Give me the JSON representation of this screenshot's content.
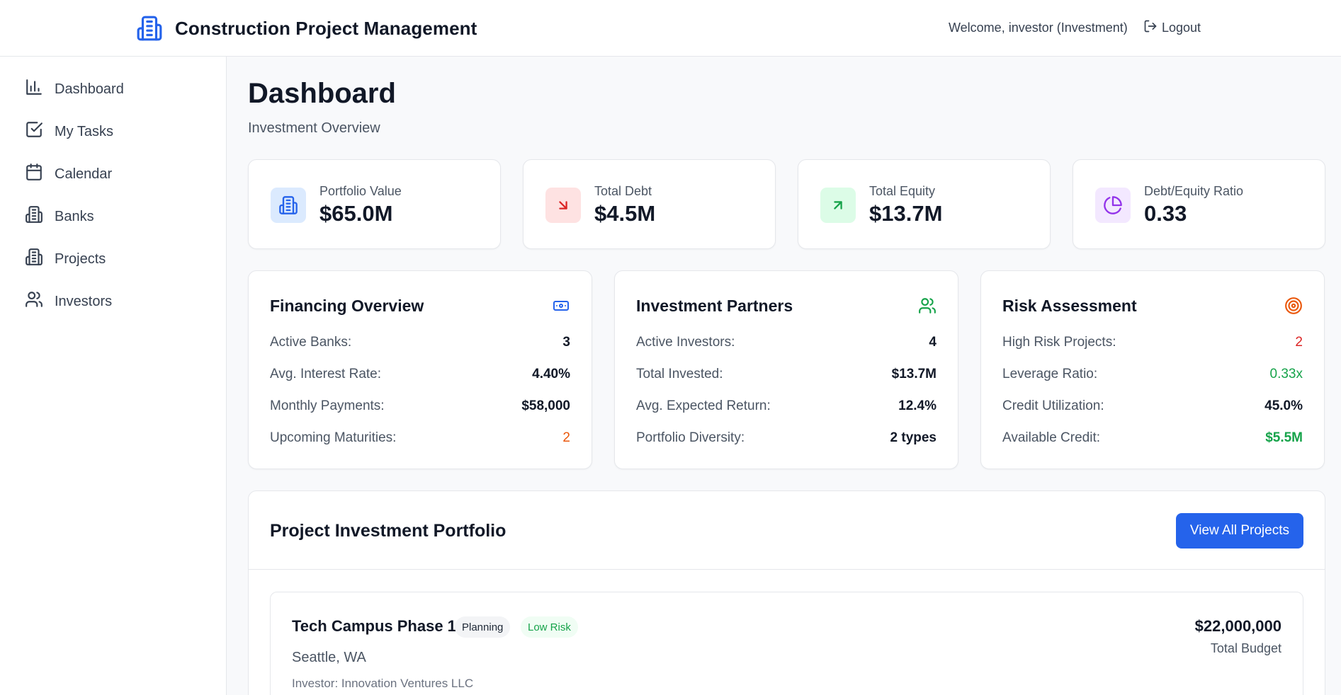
{
  "header": {
    "app_title": "Construction Project Management",
    "welcome_text": "Welcome, investor (Investment)",
    "logout_label": "Logout"
  },
  "sidebar": {
    "items": [
      {
        "label": "Dashboard",
        "icon": "bar-chart-icon"
      },
      {
        "label": "My Tasks",
        "icon": "check-square-icon"
      },
      {
        "label": "Calendar",
        "icon": "calendar-icon"
      },
      {
        "label": "Banks",
        "icon": "building-icon"
      },
      {
        "label": "Projects",
        "icon": "building-icon"
      },
      {
        "label": "Investors",
        "icon": "users-icon"
      }
    ]
  },
  "page": {
    "title": "Dashboard",
    "subtitle": "Investment Overview"
  },
  "stats": [
    {
      "label": "Portfolio Value",
      "value": "$65.0M",
      "icon": "building-icon",
      "color": "#2563eb",
      "bg": "#dbeafe"
    },
    {
      "label": "Total Debt",
      "value": "$4.5M",
      "icon": "arrow-down-right-icon",
      "color": "#dc2626",
      "bg": "#fee2e2"
    },
    {
      "label": "Total Equity",
      "value": "$13.7M",
      "icon": "arrow-up-right-icon",
      "color": "#16a34a",
      "bg": "#dcfce7"
    },
    {
      "label": "Debt/Equity Ratio",
      "value": "0.33",
      "icon": "pie-chart-icon",
      "color": "#9333ea",
      "bg": "#f3e8ff"
    }
  ],
  "financing": {
    "title": "Financing Overview",
    "icon": "banknote-icon",
    "rows": [
      {
        "label": "Active Banks:",
        "value": "3"
      },
      {
        "label": "Avg. Interest Rate:",
        "value": "4.40%"
      },
      {
        "label": "Monthly Payments:",
        "value": "$58,000"
      },
      {
        "label": "Upcoming Maturities:",
        "value": "2"
      }
    ]
  },
  "partners": {
    "title": "Investment Partners",
    "icon": "users-icon",
    "rows": [
      {
        "label": "Active Investors:",
        "value": "4"
      },
      {
        "label": "Total Invested:",
        "value": "$13.7M"
      },
      {
        "label": "Avg. Expected Return:",
        "value": "12.4%"
      },
      {
        "label": "Portfolio Diversity:",
        "value": "2 types"
      }
    ]
  },
  "risk": {
    "title": "Risk Assessment",
    "icon": "target-icon",
    "rows": [
      {
        "label": "High Risk Projects:",
        "value": "2"
      },
      {
        "label": "Leverage Ratio:",
        "value": "0.33x"
      },
      {
        "label": "Credit Utilization:",
        "value": "45.0%"
      },
      {
        "label": "Available Credit:",
        "value": "$5.5M"
      }
    ]
  },
  "colors": {
    "accent": "#2563eb",
    "warning": "#ea580c",
    "danger": "#dc2626",
    "success": "#16a34a"
  },
  "portfolio": {
    "title": "Project Investment Portfolio",
    "view_all_label": "View All Projects",
    "projects": [
      {
        "name": "Tech Campus Phase 1",
        "status": "Planning",
        "risk": "Low Risk",
        "location": "Seattle, WA",
        "investor": "Investor: Innovation Ventures LLC",
        "budget": "$22,000,000",
        "budget_label": "Total Budget"
      }
    ]
  }
}
